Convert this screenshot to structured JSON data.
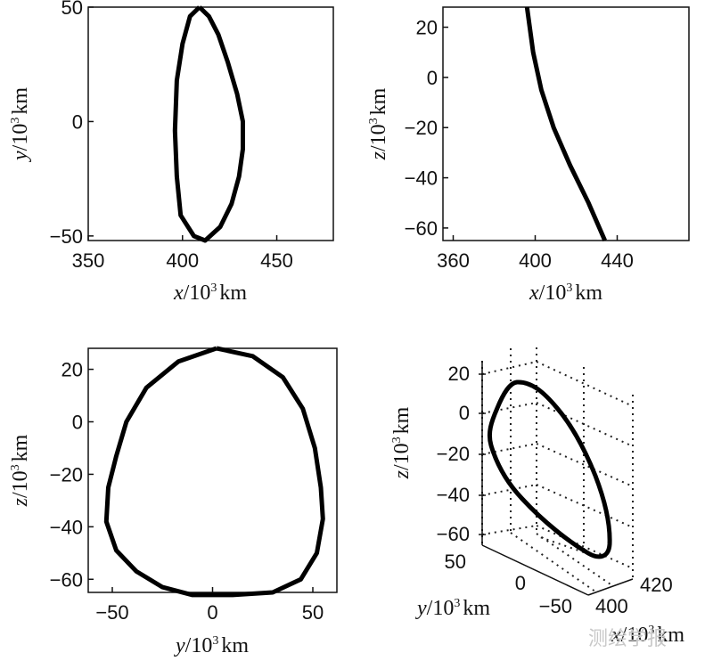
{
  "chart_data": [
    {
      "type": "line",
      "xlabel": {
        "var": "x",
        "unit": "/10",
        "exp": "3",
        "suffix": "km"
      },
      "ylabel": {
        "var": "y",
        "unit": "/10",
        "exp": "3",
        "suffix": "km"
      },
      "xlim": [
        350,
        480
      ],
      "ylim": [
        -52,
        50
      ],
      "xticks": [
        "350",
        "400",
        "450"
      ],
      "xtick_values": [
        350,
        400,
        450
      ],
      "yticks": [
        "50",
        "0",
        "−50"
      ],
      "ytick_values": [
        50,
        0,
        -50
      ],
      "series": [
        {
          "points": [
            [
              409,
              50
            ],
            [
              414,
              46
            ],
            [
              419,
              38
            ],
            [
              424,
              26
            ],
            [
              429,
              12
            ],
            [
              432,
              0
            ],
            [
              432,
              -12
            ],
            [
              430,
              -24
            ],
            [
              426,
              -36
            ],
            [
              420,
              -46
            ],
            [
              412,
              -52
            ],
            [
              406,
              -50
            ],
            [
              399,
              -41
            ],
            [
              397,
              -24
            ],
            [
              396,
              -4
            ],
            [
              397,
              18
            ],
            [
              400,
              34
            ],
            [
              404,
              46
            ],
            [
              409,
              50
            ]
          ]
        }
      ]
    },
    {
      "type": "line",
      "xlabel": {
        "var": "x",
        "unit": "/10",
        "exp": "3",
        "suffix": "km"
      },
      "ylabel": {
        "var": "z",
        "unit": "/10",
        "exp": "3",
        "suffix": "km"
      },
      "xlim": [
        355,
        475
      ],
      "ylim": [
        -65,
        28
      ],
      "xticks": [
        "360",
        "400",
        "440"
      ],
      "xtick_values": [
        360,
        400,
        440
      ],
      "yticks": [
        "20",
        "0",
        "−20",
        "−40",
        "−60"
      ],
      "ytick_values": [
        20,
        0,
        -20,
        -40,
        -60
      ],
      "series": [
        {
          "points": [
            [
              396,
              28
            ],
            [
              399,
              10
            ],
            [
              403,
              -5
            ],
            [
              409,
              -20
            ],
            [
              417,
              -35
            ],
            [
              426,
              -50
            ],
            [
              434,
              -65
            ]
          ]
        }
      ]
    },
    {
      "type": "line",
      "xlabel": {
        "var": "y",
        "unit": "/10",
        "exp": "3",
        "suffix": "km"
      },
      "ylabel": {
        "var": "z",
        "unit": "/10",
        "exp": "3",
        "suffix": "km"
      },
      "xlim": [
        -62,
        62
      ],
      "ylim": [
        -65,
        28
      ],
      "xticks": [
        "−50",
        "0",
        "50"
      ],
      "xtick_values": [
        -50,
        0,
        50
      ],
      "yticks": [
        "20",
        "0",
        "−20",
        "−40",
        "−60"
      ],
      "ytick_values": [
        20,
        0,
        -20,
        -40,
        -60
      ],
      "series": [
        {
          "points": [
            [
              2,
              28
            ],
            [
              20,
              25
            ],
            [
              35,
              17
            ],
            [
              45,
              5
            ],
            [
              51,
              -10
            ],
            [
              54,
              -25
            ],
            [
              55,
              -37
            ],
            [
              52,
              -50
            ],
            [
              44,
              -60
            ],
            [
              30,
              -65
            ],
            [
              10,
              -66
            ],
            [
              -10,
              -66
            ],
            [
              -25,
              -63
            ],
            [
              -38,
              -57
            ],
            [
              -48,
              -49
            ],
            [
              -53,
              -38
            ],
            [
              -52,
              -25
            ],
            [
              -48,
              -13
            ],
            [
              -43,
              0
            ],
            [
              -33,
              13
            ],
            [
              -17,
              23
            ],
            [
              2,
              28
            ]
          ]
        }
      ]
    },
    {
      "type": "line",
      "xlabel": {
        "var": "x",
        "unit": "/10",
        "exp": "3",
        "suffix": "km"
      },
      "ylabel": {
        "var": "z",
        "unit": "/10",
        "exp": "3",
        "suffix": "km"
      },
      "zlabel": {
        "var": "y",
        "unit": "/10",
        "exp": "3",
        "suffix": "km"
      },
      "zticks": [
        "20",
        "0",
        "−20",
        "−40",
        "−60"
      ],
      "yticks": [
        "50",
        "0",
        "−50"
      ],
      "xticks": [
        "420",
        "400"
      ],
      "grid": true
    }
  ],
  "watermark": "测绘学报"
}
